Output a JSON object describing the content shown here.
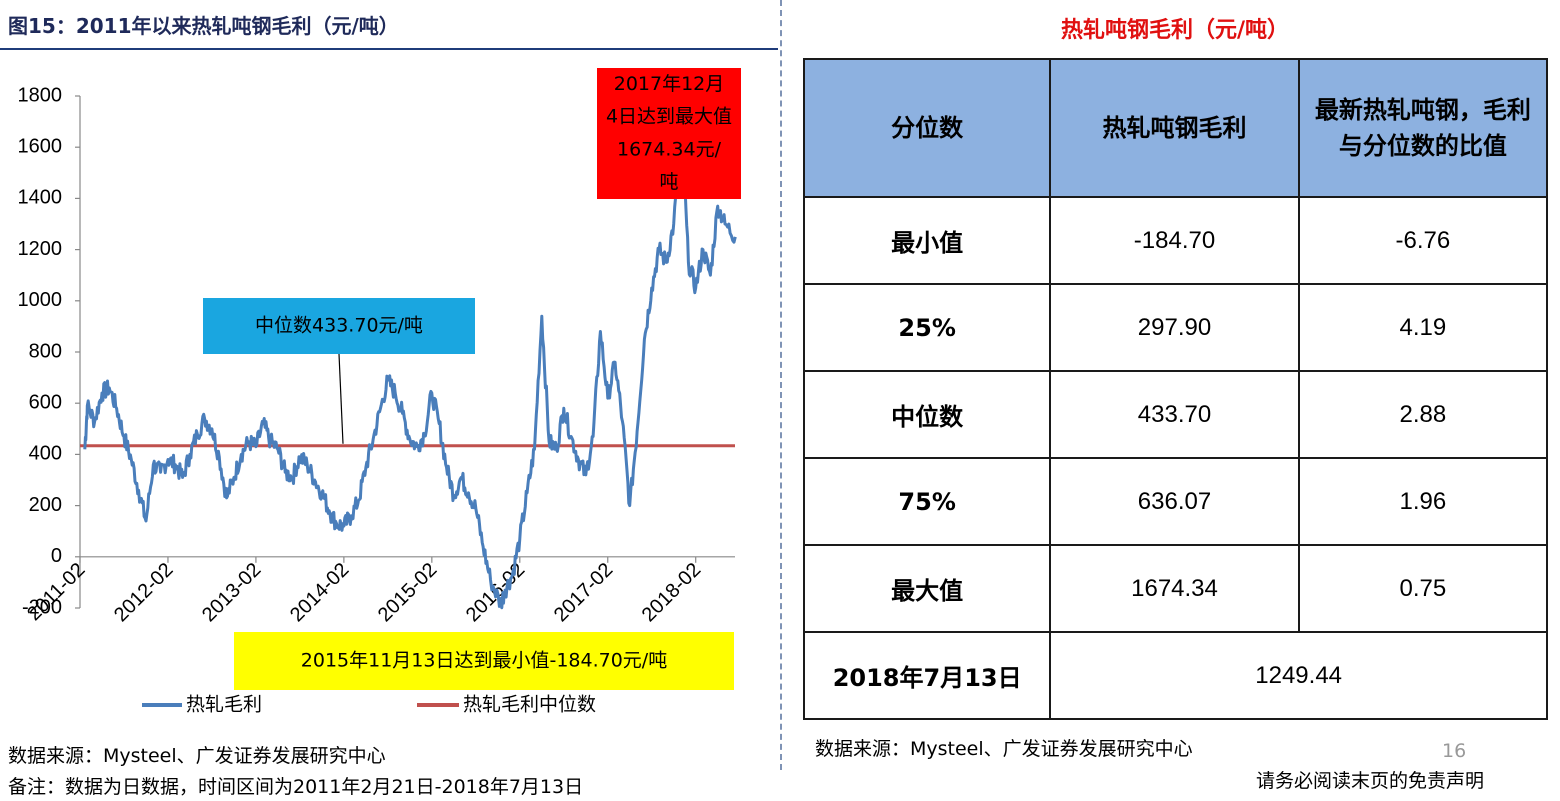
{
  "left_title": "图15：2011年以来热轧吨钢毛利（元/吨）",
  "right_title": "热轧吨钢毛利（元/吨）",
  "chart_data": {
    "type": "line",
    "title": "",
    "xlabel": "",
    "ylabel": "",
    "ylim": [
      -200,
      1800
    ],
    "y_ticks": [
      "1800",
      "1600",
      "1400",
      "1200",
      "1000",
      "800",
      "600",
      "400",
      "200",
      "0",
      "-200"
    ],
    "x_ticks": [
      "2011-02",
      "2012-02",
      "2013-02",
      "2014-02",
      "2015-02",
      "2016-02",
      "2017-02",
      "2018-02"
    ],
    "x_range": [
      "2011-02",
      "2018-07"
    ],
    "series": [
      {
        "name": "热轧毛利",
        "color": "#4a7ebb",
        "points": [
          [
            "2011-02-21",
            420
          ],
          [
            "2011-03",
            590
          ],
          [
            "2011-04",
            530
          ],
          [
            "2011-05",
            640
          ],
          [
            "2011-06",
            660
          ],
          [
            "2011-07",
            580
          ],
          [
            "2011-08",
            470
          ],
          [
            "2011-09",
            380
          ],
          [
            "2011-10",
            260
          ],
          [
            "2011-11",
            140
          ],
          [
            "2011-12",
            360
          ],
          [
            "2012-01",
            330
          ],
          [
            "2012-02",
            380
          ],
          [
            "2012-03",
            360
          ],
          [
            "2012-04",
            310
          ],
          [
            "2012-05",
            400
          ],
          [
            "2012-06",
            480
          ],
          [
            "2012-07",
            540
          ],
          [
            "2012-08",
            500
          ],
          [
            "2012-09",
            390
          ],
          [
            "2012-10",
            230
          ],
          [
            "2012-11",
            310
          ],
          [
            "2012-12",
            400
          ],
          [
            "2013-01",
            450
          ],
          [
            "2013-02",
            430
          ],
          [
            "2013-03",
            520
          ],
          [
            "2013-04",
            450
          ],
          [
            "2013-05",
            420
          ],
          [
            "2013-06",
            330
          ],
          [
            "2013-07",
            310
          ],
          [
            "2013-08",
            390
          ],
          [
            "2013-09",
            360
          ],
          [
            "2013-10",
            300
          ],
          [
            "2013-11",
            250
          ],
          [
            "2013-12",
            180
          ],
          [
            "2014-01",
            130
          ],
          [
            "2014-02",
            120
          ],
          [
            "2014-03",
            160
          ],
          [
            "2014-04",
            220
          ],
          [
            "2014-05",
            350
          ],
          [
            "2014-06",
            460
          ],
          [
            "2014-07",
            580
          ],
          [
            "2014-08",
            690
          ],
          [
            "2014-09",
            640
          ],
          [
            "2014-10",
            560
          ],
          [
            "2014-11",
            460
          ],
          [
            "2014-12",
            430
          ],
          [
            "2015-01",
            480
          ],
          [
            "2015-02",
            640
          ],
          [
            "2015-03",
            520
          ],
          [
            "2015-04",
            350
          ],
          [
            "2015-05",
            240
          ],
          [
            "2015-06",
            310
          ],
          [
            "2015-07",
            250
          ],
          [
            "2015-08",
            190
          ],
          [
            "2015-09",
            40
          ],
          [
            "2015-10",
            -90
          ],
          [
            "2015-11-13",
            -184.7
          ],
          [
            "2015-12",
            -130
          ],
          [
            "2016-01",
            -70
          ],
          [
            "2016-02",
            70
          ],
          [
            "2016-03",
            250
          ],
          [
            "2016-04",
            420
          ],
          [
            "2016-05",
            940
          ],
          [
            "2016-06",
            450
          ],
          [
            "2016-07",
            420
          ],
          [
            "2016-08",
            580
          ],
          [
            "2016-09",
            470
          ],
          [
            "2016-10",
            380
          ],
          [
            "2016-11",
            320
          ],
          [
            "2016-12",
            470
          ],
          [
            "2017-01",
            880
          ],
          [
            "2017-02",
            620
          ],
          [
            "2017-03",
            760
          ],
          [
            "2017-04",
            530
          ],
          [
            "2017-05",
            200
          ],
          [
            "2017-06",
            490
          ],
          [
            "2017-07",
            850
          ],
          [
            "2017-08",
            1050
          ],
          [
            "2017-09",
            1200
          ],
          [
            "2017-10",
            1150
          ],
          [
            "2017-11",
            1300
          ],
          [
            "2017-12-04",
            1674.34
          ],
          [
            "2018-01",
            1150
          ],
          [
            "2018-02",
            1050
          ],
          [
            "2018-03",
            1200
          ],
          [
            "2018-04",
            1100
          ],
          [
            "2018-05",
            1370
          ],
          [
            "2018-06",
            1300
          ],
          [
            "2018-07-13",
            1249.44
          ]
        ]
      },
      {
        "name": "热轧毛利中位数",
        "color": "#c0504d",
        "value": 433.7
      }
    ],
    "annotations": {
      "max_box": "2017年12月4日达到最大值1674.34元/吨",
      "median_box": "中位数433.70元/吨",
      "min_box": "2015年11月13日达到最小值-184.70元/吨"
    },
    "legend": [
      "热轧毛利",
      "热轧毛利中位数"
    ],
    "legend_position": "bottom"
  },
  "table": {
    "headers": [
      "分位数",
      "热轧吨钢毛利",
      "最新热轧吨钢，毛利与分位数的比值"
    ],
    "rows": [
      [
        "最小值",
        "-184.70",
        "-6.76"
      ],
      [
        "25%",
        "297.90",
        "4.19"
      ],
      [
        "中位数",
        "433.70",
        "2.88"
      ],
      [
        "75%",
        "636.07",
        "1.96"
      ],
      [
        "最大值",
        "1674.34",
        "0.75"
      ]
    ],
    "last_row": [
      "2018年7月13日",
      "1249.44"
    ]
  },
  "left_source": "数据来源：Mysteel、广发证券发展研究中心",
  "left_note": "备注：数据为日数据，时间区间为2011年2月21日-2018年7月13日",
  "right_source": "数据来源：Mysteel、广发证券发展研究中心",
  "page_number": "16",
  "disclaimer": "请务必阅读末页的免责声明"
}
